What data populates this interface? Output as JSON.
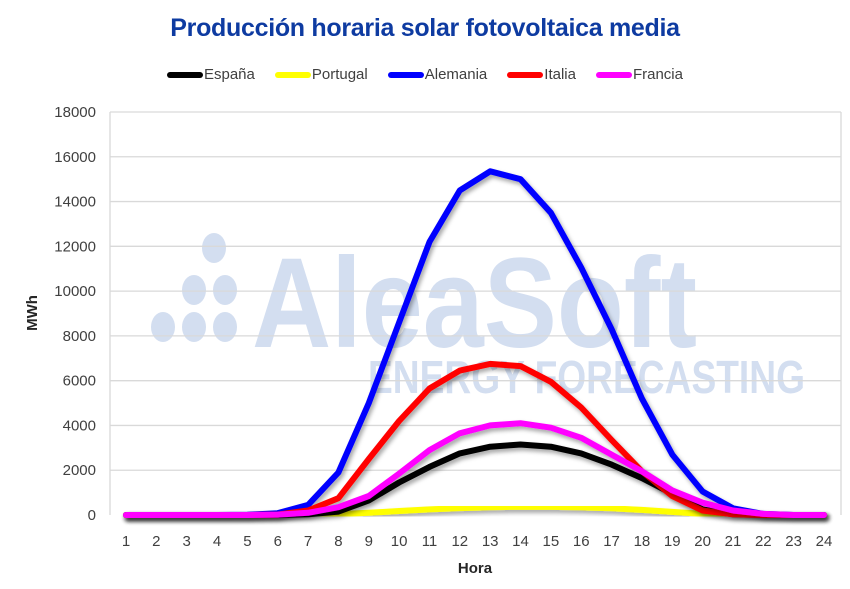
{
  "chart_data": {
    "type": "line",
    "title": "Producción horaria solar fotovoltaica media",
    "xlabel": "Hora",
    "ylabel": "MWh",
    "x": [
      1,
      2,
      3,
      4,
      5,
      6,
      7,
      8,
      9,
      10,
      11,
      12,
      13,
      14,
      15,
      16,
      17,
      18,
      19,
      20,
      21,
      22,
      23,
      24
    ],
    "ylim": [
      0,
      18000
    ],
    "yticks": [
      0,
      2000,
      4000,
      6000,
      8000,
      10000,
      12000,
      14000,
      16000,
      18000
    ],
    "grid": true,
    "legend_position": "top",
    "series": [
      {
        "name": "España",
        "color": "#000000",
        "values": [
          0,
          0,
          0,
          0,
          0,
          0,
          30,
          150,
          650,
          1450,
          2150,
          2750,
          3050,
          3150,
          3050,
          2750,
          2250,
          1650,
          950,
          250,
          30,
          0,
          0,
          0
        ]
      },
      {
        "name": "Portugal",
        "color": "#ffff00",
        "values": [
          0,
          0,
          0,
          0,
          0,
          0,
          10,
          40,
          100,
          180,
          250,
          310,
          350,
          370,
          360,
          340,
          300,
          230,
          140,
          50,
          10,
          0,
          0,
          0
        ]
      },
      {
        "name": "Alemania",
        "color": "#0000ff",
        "values": [
          0,
          0,
          0,
          0,
          10,
          80,
          450,
          1900,
          5000,
          8600,
          12200,
          14500,
          15350,
          15000,
          13500,
          11050,
          8300,
          5200,
          2700,
          1050,
          300,
          50,
          0,
          0
        ]
      },
      {
        "name": "Italia",
        "color": "#ff0000",
        "values": [
          0,
          0,
          0,
          0,
          0,
          20,
          200,
          750,
          2500,
          4200,
          5650,
          6450,
          6750,
          6650,
          5950,
          4800,
          3350,
          1950,
          850,
          200,
          30,
          0,
          0,
          0
        ]
      },
      {
        "name": "Francia",
        "color": "#ff00ff",
        "values": [
          0,
          0,
          0,
          0,
          0,
          20,
          100,
          350,
          850,
          1850,
          2900,
          3650,
          4000,
          4100,
          3900,
          3450,
          2700,
          1950,
          1100,
          550,
          200,
          50,
          0,
          0
        ]
      }
    ]
  },
  "watermark": {
    "brand": "AleaSoft",
    "tagline": "ENERGY FORECASTING",
    "color": "#d3def0"
  },
  "style": {
    "title_color": "#0e3ba1",
    "grid_color": "#d9d9d9",
    "tick_color": "#404040"
  }
}
